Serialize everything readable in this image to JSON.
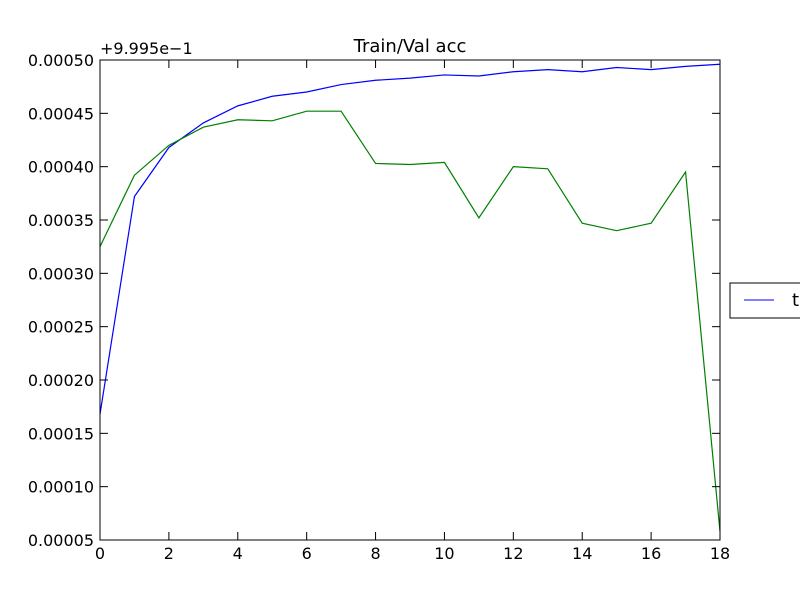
{
  "chart_data": {
    "type": "line",
    "title": "Train/Val acc",
    "offset_text": "+9.995e−1",
    "x": [
      0,
      1,
      2,
      3,
      4,
      5,
      6,
      7,
      8,
      9,
      10,
      11,
      12,
      13,
      14,
      15,
      16,
      17,
      18
    ],
    "xlim": [
      0,
      18
    ],
    "ylim": [
      5e-05,
      0.0005
    ],
    "x_ticks": [
      "0",
      "2",
      "4",
      "6",
      "8",
      "10",
      "12",
      "14",
      "16",
      "18"
    ],
    "x_tick_values": [
      0,
      2,
      4,
      6,
      8,
      10,
      12,
      14,
      16,
      18
    ],
    "y_ticks": [
      "0.00005",
      "0.00010",
      "0.00015",
      "0.00020",
      "0.00025",
      "0.00030",
      "0.00035",
      "0.00040",
      "0.00045",
      "0.00050"
    ],
    "y_tick_values": [
      5e-05,
      0.0001,
      0.00015,
      0.0002,
      0.00025,
      0.0003,
      0.00035,
      0.0004,
      0.00045,
      0.0005
    ],
    "grid": false,
    "legend_position": "outside-right",
    "series": [
      {
        "name": "t",
        "color": "#0000ff",
        "values": [
          0.000168,
          0.000372,
          0.000418,
          0.000441,
          0.000457,
          0.000466,
          0.00047,
          0.000477,
          0.000481,
          0.000483,
          0.000486,
          0.000485,
          0.000489,
          0.000491,
          0.000489,
          0.000493,
          0.000491,
          0.000494,
          0.000496
        ]
      },
      {
        "color": "#008000",
        "values": [
          0.000325,
          0.000392,
          0.00042,
          0.000437,
          0.000444,
          0.000443,
          0.000452,
          0.000452,
          0.000403,
          0.000402,
          0.000404,
          0.000352,
          0.0004,
          0.000398,
          0.000347,
          0.00034,
          0.000347,
          0.000395,
          5.8e-05
        ]
      }
    ]
  }
}
